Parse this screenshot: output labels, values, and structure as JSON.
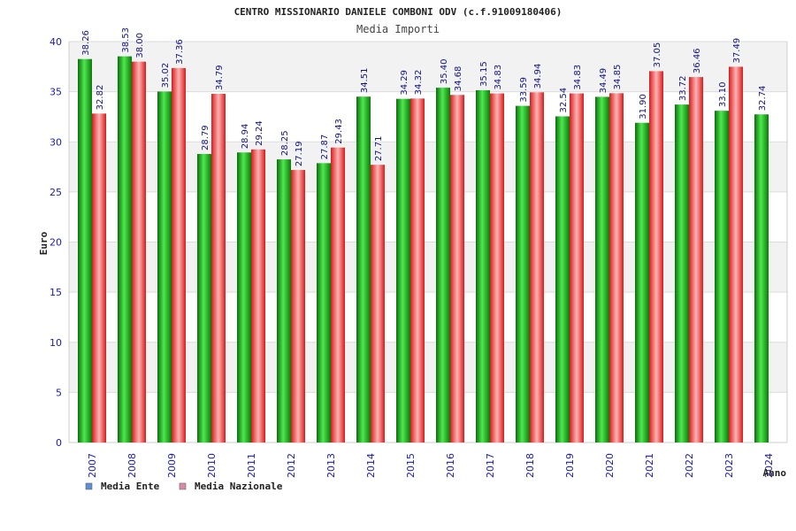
{
  "chart_data": {
    "type": "bar",
    "title": "CENTRO MISSIONARIO DANIELE COMBONI ODV (c.f.91009180406)",
    "subtitle": "Media Importi",
    "xlabel": "Anno",
    "ylabel": "Euro",
    "ylim": [
      0,
      40
    ],
    "yticks": [
      0,
      5,
      10,
      15,
      20,
      25,
      30,
      35,
      40
    ],
    "grid": true,
    "legend_position": "bottom-left",
    "categories": [
      "2007",
      "2008",
      "2009",
      "2010",
      "2011",
      "2012",
      "2013",
      "2014",
      "2015",
      "2016",
      "2017",
      "2018",
      "2019",
      "2020",
      "2021",
      "2022",
      "2023",
      "2024"
    ],
    "series": [
      {
        "name": "Media Ente",
        "color": "#1fae1f",
        "values": [
          38.26,
          38.53,
          35.02,
          28.79,
          28.94,
          28.25,
          27.87,
          34.51,
          34.29,
          35.4,
          35.15,
          33.59,
          32.54,
          34.49,
          31.9,
          33.72,
          33.1,
          32.74
        ],
        "labels": [
          "38.26",
          "38.53",
          "35.02",
          "28.79",
          "28.94",
          "28.25",
          "27.87",
          "34.51",
          "34.29",
          "35.40",
          "35.15",
          "33.59",
          "32.54",
          "34.49",
          "31.90",
          "33.72",
          "33.10",
          "32.74"
        ]
      },
      {
        "name": "Media Nazionale",
        "color": "#e02a2a",
        "values": [
          32.82,
          38.0,
          37.36,
          34.79,
          29.24,
          27.19,
          29.43,
          27.71,
          34.32,
          34.68,
          34.83,
          34.94,
          34.83,
          34.85,
          37.05,
          36.46,
          37.49,
          null
        ],
        "labels": [
          "32.82",
          "38.00",
          "37.36",
          "34.79",
          "29.24",
          "27.19",
          "29.43",
          "27.71",
          "34.32",
          "34.68",
          "34.83",
          "34.94",
          "34.83",
          "34.85",
          "37.05",
          "36.46",
          "37.49",
          null
        ]
      }
    ]
  },
  "legend": {
    "ente_label": "Media Ente",
    "ente_color": "#5b8fd6",
    "nazionale_label": "Media Nazionale",
    "nazionale_color": "#d88aa8"
  }
}
